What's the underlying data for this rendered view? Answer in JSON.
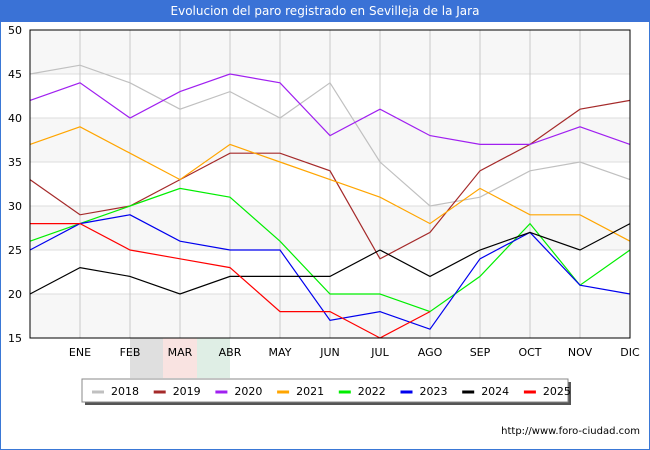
{
  "header": {
    "title": "Evolucion del paro registrado en Sevilleja de la Jara"
  },
  "footer": {
    "url": "http://www.foro-ciudad.com"
  },
  "chart_data": {
    "type": "line",
    "title": "Evolucion del paro registrado en Sevilleja de la Jara",
    "xlabel": "",
    "ylabel": "",
    "categories": [
      "",
      "ENE",
      "FEB",
      "MAR",
      "ABR",
      "MAY",
      "JUN",
      "JUL",
      "AGO",
      "SEP",
      "OCT",
      "NOV",
      "DIC"
    ],
    "yticks": [
      15,
      20,
      25,
      30,
      35,
      40,
      45,
      50
    ],
    "ylim": [
      15,
      50
    ],
    "grid": true,
    "legend_position": "bottom",
    "series": [
      {
        "name": "2018",
        "color": "#c0c0c0",
        "values": [
          45,
          46,
          44,
          41,
          43,
          40,
          44,
          35,
          30,
          31,
          34,
          35,
          33
        ]
      },
      {
        "name": "2019",
        "color": "#a52a2a",
        "values": [
          33,
          29,
          30,
          33,
          36,
          36,
          34,
          24,
          27,
          34,
          37,
          41,
          42
        ]
      },
      {
        "name": "2020",
        "color": "#a020f0",
        "values": [
          42,
          44,
          40,
          43,
          45,
          44,
          38,
          41,
          38,
          37,
          37,
          39,
          37
        ]
      },
      {
        "name": "2021",
        "color": "#ffa500",
        "values": [
          37,
          39,
          36,
          33,
          37,
          35,
          33,
          31,
          28,
          32,
          29,
          29,
          26
        ]
      },
      {
        "name": "2022",
        "color": "#00ee00",
        "values": [
          26,
          28,
          30,
          32,
          31,
          26,
          20,
          20,
          18,
          22,
          28,
          21,
          25
        ]
      },
      {
        "name": "2023",
        "color": "#0000ee",
        "values": [
          25,
          28,
          29,
          26,
          25,
          25,
          17,
          18,
          16,
          24,
          27,
          21,
          20
        ]
      },
      {
        "name": "2024",
        "color": "#000000",
        "values": [
          20,
          23,
          22,
          20,
          22,
          22,
          22,
          25,
          22,
          25,
          27,
          25,
          28
        ]
      },
      {
        "name": "2025",
        "color": "#ff0000",
        "values": [
          28,
          28,
          25,
          24,
          23,
          18,
          18,
          15,
          18,
          null,
          null,
          null,
          null
        ]
      }
    ]
  }
}
